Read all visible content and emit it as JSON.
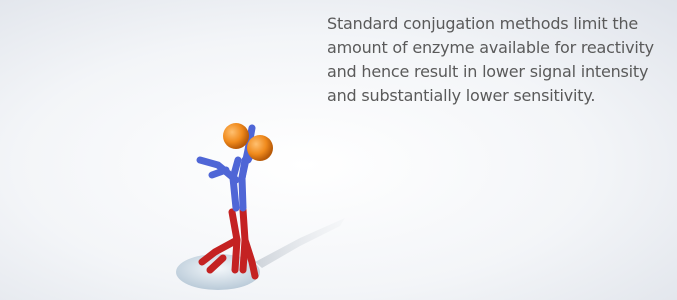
{
  "caption": "Standard conjugation methods limit the amount of enzyme available for reactivity and hence result in lower signal intensity and substantially lower sensitivity."
}
